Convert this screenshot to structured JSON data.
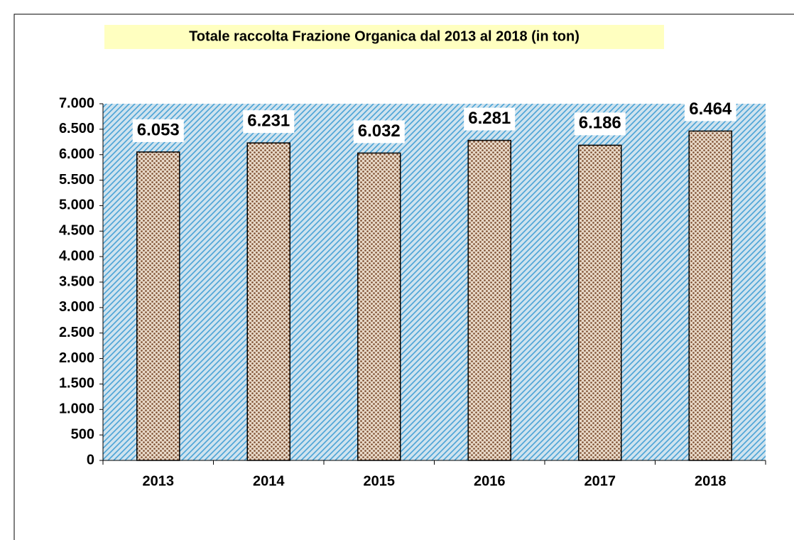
{
  "chart_data": {
    "type": "bar",
    "title": "Totale raccolta Frazione Organica dal 2013 al 2018  (in ton)",
    "categories": [
      "2013",
      "2014",
      "2015",
      "2016",
      "2017",
      "2018"
    ],
    "values": [
      6053,
      6231,
      6032,
      6281,
      6186,
      6464
    ],
    "value_labels": [
      "6.053",
      "6.231",
      "6.032",
      "6.281",
      "6.186",
      "6.464"
    ],
    "color": "#8b5a3c",
    "ylim": [
      0,
      7000
    ],
    "yticks": [
      0,
      500,
      {
        "value": 1000,
        "label": "1.000"
      },
      {
        "value": 1500,
        "label": "1.500"
      },
      {
        "value": 2000,
        "label": "2.000"
      },
      {
        "value": 2500,
        "label": "2.500"
      },
      {
        "value": 3000,
        "label": "3.000"
      },
      {
        "value": 3500,
        "label": "3.500"
      },
      {
        "value": 4000,
        "label": "4.000"
      },
      {
        "value": 4500,
        "label": "4.500"
      },
      {
        "value": 5000,
        "label": "5.000"
      },
      {
        "value": 5500,
        "label": "5.500"
      },
      {
        "value": 6000,
        "label": "6.000"
      },
      {
        "value": 6500,
        "label": "6.500"
      },
      {
        "value": 7000,
        "label": "7.000"
      }
    ],
    "grid": false
  }
}
